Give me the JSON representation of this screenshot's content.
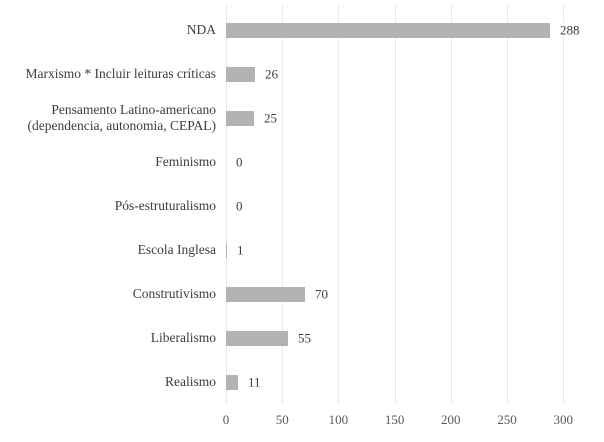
{
  "chart_data": {
    "type": "bar",
    "orientation": "horizontal",
    "title": "",
    "xlabel": "",
    "ylabel": "",
    "legend": "none",
    "grid": "vertical-only",
    "xlim": [
      0,
      300
    ],
    "x_ticks": [
      "0",
      "50",
      "100",
      "150",
      "200",
      "250",
      "300"
    ],
    "x_tick_values": [
      0,
      50,
      100,
      150,
      200,
      250,
      300
    ],
    "categories": [
      "NDA",
      "Marxismo * Incluir leituras críticas",
      "Pensamento Latino-americano\n(dependencia, autonomia, CEPAL)",
      "Feminismo",
      "Pós-estruturalismo",
      "Escola Inglesa",
      "Construtivismo",
      "Liberalismo",
      "Realismo"
    ],
    "values": [
      288,
      26,
      25,
      0,
      0,
      1,
      70,
      55,
      11
    ],
    "data_labels": [
      "288",
      "26",
      "25",
      "0",
      "0",
      "1",
      "70",
      "55",
      "11"
    ],
    "colors": {
      "bar": "#b3b3b6",
      "gridline": "#e9e9e9",
      "category_text": "#3d3d3d",
      "value_text": "#3d3d3d",
      "tick_text": "#595959",
      "background": "#ffffff"
    }
  }
}
